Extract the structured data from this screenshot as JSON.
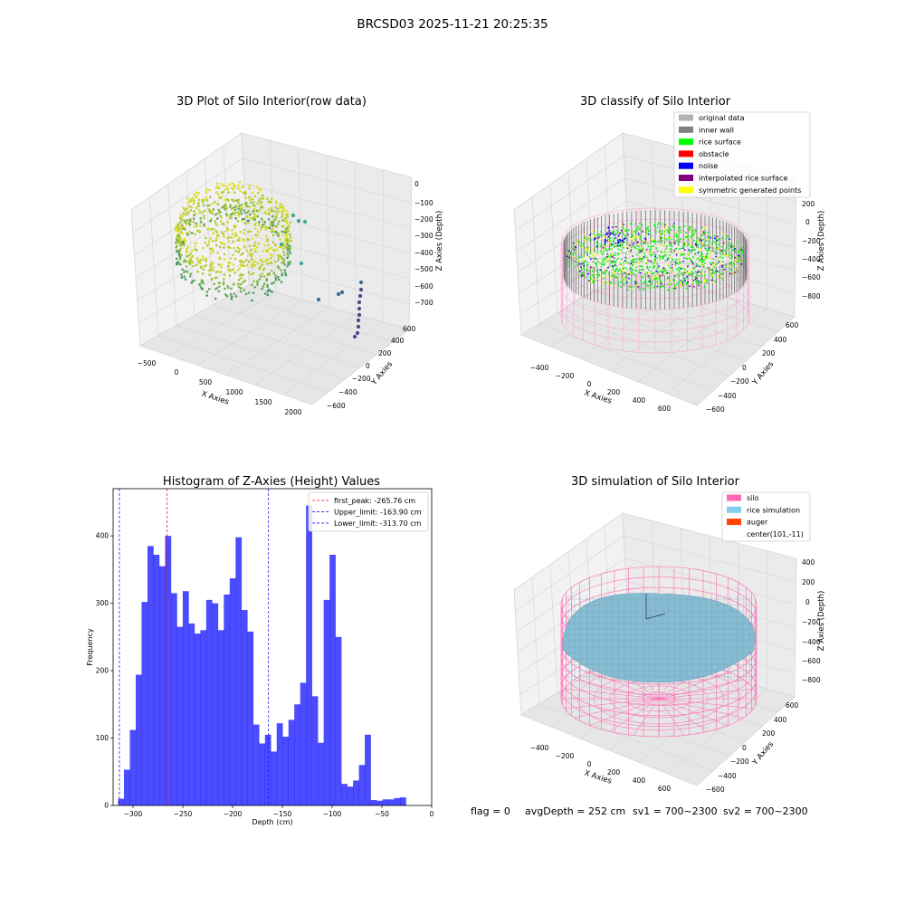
{
  "figure": {
    "suptitle": "BRCSD03 2025-11-21 20:25:35",
    "status": {
      "flag": "flag = 0",
      "avg_depth": "avgDepth = 252 cm",
      "sv1": "sv1 = 700~2300",
      "sv2": "sv2 = 700~2300"
    }
  },
  "panels": {
    "raw": {
      "title": "3D Plot of Silo Interior(row data)",
      "xlabel": "X Axies",
      "ylabel": "Y Axies",
      "zlabel": "Z Axies (Depth)",
      "xticks": [
        "−500",
        "0",
        "500",
        "1000",
        "1500",
        "2000"
      ],
      "yticks": [
        "−600",
        "−400",
        "−200",
        "0",
        "200",
        "400",
        "600"
      ],
      "zticks": [
        "0",
        "−100",
        "−200",
        "−300",
        "−400",
        "−500",
        "−600",
        "−700"
      ],
      "colormap": "viridis"
    },
    "classify": {
      "title": "3D classify of Silo Interior",
      "xlabel": "X Axies",
      "ylabel": "Y Axies",
      "zlabel": "Z Axies (Depth)",
      "xticks": [
        "−400",
        "−200",
        "0",
        "200",
        "400",
        "600"
      ],
      "yticks": [
        "−600",
        "−400",
        "−200",
        "0",
        "200",
        "400",
        "600"
      ],
      "zticks": [
        "200",
        "0",
        "−200",
        "−400",
        "−600",
        "−800"
      ],
      "legend": [
        {
          "label": "original data",
          "color": "#b3b3b3"
        },
        {
          "label": "inner wall",
          "color": "#808080"
        },
        {
          "label": "rice surface",
          "color": "#00ff00"
        },
        {
          "label": "obstacle",
          "color": "#ff0000"
        },
        {
          "label": "noise",
          "color": "#0000ff"
        },
        {
          "label": "interpolated rice surface",
          "color": "#800080"
        },
        {
          "label": "symmetric generated points",
          "color": "#ffff00"
        }
      ]
    },
    "simulation": {
      "title": "3D simulation of Silo Interior",
      "xlabel": "X Axies",
      "ylabel": "Y Axies",
      "zlabel": "Z Axies (Depth)",
      "xticks": [
        "−400",
        "−200",
        "0",
        "200",
        "400",
        "600"
      ],
      "yticks": [
        "−600",
        "−400",
        "−200",
        "0",
        "200",
        "400",
        "600"
      ],
      "zticks": [
        "400",
        "200",
        "0",
        "−200",
        "−400",
        "−600",
        "−800"
      ],
      "legend": [
        {
          "label": "silo",
          "color": "#ff69b4"
        },
        {
          "label": "rice simulation",
          "color": "#87ceeb"
        },
        {
          "label": "auger",
          "color": "#ff4500"
        },
        {
          "label": "center(101,-11)",
          "color": ""
        }
      ]
    }
  },
  "chart_data": [
    {
      "type": "bar",
      "title": "Histogram of Z-Axies (Height) Values",
      "xlabel": "Depth (cm)",
      "ylabel": "Frequency",
      "bar_color": "#0000ff",
      "bar_opacity": 0.7,
      "bin_start": -315,
      "bin_width": 5.9,
      "values": [
        10,
        53,
        112,
        194,
        302,
        385,
        372,
        355,
        400,
        315,
        265,
        318,
        270,
        255,
        260,
        305,
        300,
        260,
        313,
        337,
        398,
        290,
        258,
        120,
        92,
        105,
        80,
        122,
        102,
        127,
        150,
        182,
        445,
        162,
        93,
        305,
        372,
        250,
        32,
        28,
        37,
        60,
        105,
        8,
        7,
        9,
        9,
        11,
        12
      ],
      "xlim": [
        -320,
        0
      ],
      "ylim": [
        0,
        470
      ],
      "xticks": [
        -300,
        -250,
        -200,
        -150,
        -100,
        -50,
        0
      ],
      "yticks": [
        0,
        100,
        200,
        300,
        400
      ],
      "xtick_labels": [
        "−300",
        "−250",
        "−200",
        "−150",
        "−100",
        "−50",
        "0"
      ],
      "ytick_labels": [
        "0",
        "100",
        "200",
        "300",
        "400"
      ],
      "reference_lines": [
        {
          "label": "first_peak: -265.76 cm",
          "x": -265.76,
          "color": "#ff0000"
        },
        {
          "label": "Upper_limit: -163.90 cm",
          "x": -163.9,
          "color": "#0000ff"
        },
        {
          "label": "Lower_limit: -313.70 cm",
          "x": -313.7,
          "color": "#0000ff"
        }
      ],
      "grid": false,
      "legend_position": "top-right"
    }
  ]
}
